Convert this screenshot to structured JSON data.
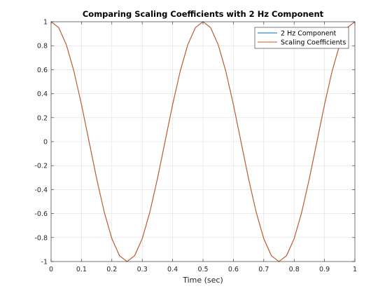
{
  "chart_data": {
    "type": "line",
    "title": "Comparing Scaling Coefficients with 2 Hz Component",
    "xlabel": "Time (sec)",
    "ylabel": "",
    "xlim": [
      0,
      1
    ],
    "ylim": [
      -1,
      1
    ],
    "grid": true,
    "legend_position": "top-right",
    "xticks": [
      0,
      0.1,
      0.2,
      0.3,
      0.4,
      0.5,
      0.6,
      0.7,
      0.8,
      0.9,
      1
    ],
    "xtick_labels": [
      "0",
      "0.1",
      "0.2",
      "0.3",
      "0.4",
      "0.5",
      "0.6",
      "0.7",
      "0.8",
      "0.9",
      "1"
    ],
    "yticks": [
      -1,
      -0.8,
      -0.6,
      -0.4,
      -0.2,
      0,
      0.2,
      0.4,
      0.6,
      0.8,
      1
    ],
    "ytick_labels": [
      "-1",
      "-0.8",
      "-0.6",
      "-0.4",
      "-0.2",
      "0",
      "0.2",
      "0.4",
      "0.6",
      "0.8",
      "1"
    ],
    "series": [
      {
        "name": "2 Hz Component",
        "color": "#0072bd",
        "x": [
          0,
          0.025,
          0.05,
          0.075,
          0.1,
          0.125,
          0.15,
          0.175,
          0.2,
          0.225,
          0.25,
          0.275,
          0.3,
          0.325,
          0.35,
          0.375,
          0.4,
          0.425,
          0.45,
          0.475,
          0.5,
          0.525,
          0.55,
          0.575,
          0.6,
          0.625,
          0.65,
          0.675,
          0.7,
          0.725,
          0.75,
          0.775,
          0.8,
          0.825,
          0.85,
          0.875,
          0.9,
          0.925,
          0.95,
          0.975,
          1.0
        ],
        "y": [
          1,
          0.951,
          0.809,
          0.588,
          0.309,
          0,
          -0.309,
          -0.588,
          -0.809,
          -0.951,
          -1,
          -0.951,
          -0.809,
          -0.588,
          -0.309,
          0,
          0.309,
          0.588,
          0.809,
          0.951,
          1,
          0.951,
          0.809,
          0.588,
          0.309,
          0,
          -0.309,
          -0.588,
          -0.809,
          -0.951,
          -1,
          -0.951,
          -0.809,
          -0.588,
          -0.309,
          0,
          0.309,
          0.588,
          0.809,
          0.951,
          1
        ]
      },
      {
        "name": "Scaling Coefficients",
        "color": "#d95319",
        "x": [
          0,
          0.025,
          0.05,
          0.075,
          0.1,
          0.125,
          0.15,
          0.175,
          0.2,
          0.225,
          0.25,
          0.275,
          0.3,
          0.325,
          0.35,
          0.375,
          0.4,
          0.425,
          0.45,
          0.475,
          0.5,
          0.525,
          0.55,
          0.575,
          0.6,
          0.625,
          0.65,
          0.675,
          0.7,
          0.725,
          0.75,
          0.775,
          0.8,
          0.825,
          0.85,
          0.875,
          0.9,
          0.925,
          0.95,
          0.975,
          1.0
        ],
        "y": [
          1,
          0.951,
          0.809,
          0.588,
          0.309,
          0,
          -0.309,
          -0.588,
          -0.809,
          -0.951,
          -1,
          -0.951,
          -0.809,
          -0.588,
          -0.309,
          0,
          0.309,
          0.588,
          0.809,
          0.951,
          1,
          0.951,
          0.809,
          0.588,
          0.309,
          0,
          -0.309,
          -0.588,
          -0.809,
          -0.951,
          -1,
          -0.951,
          -0.809,
          -0.588,
          -0.309,
          0,
          0.309,
          0.588,
          0.809,
          0.951,
          1
        ]
      }
    ]
  }
}
